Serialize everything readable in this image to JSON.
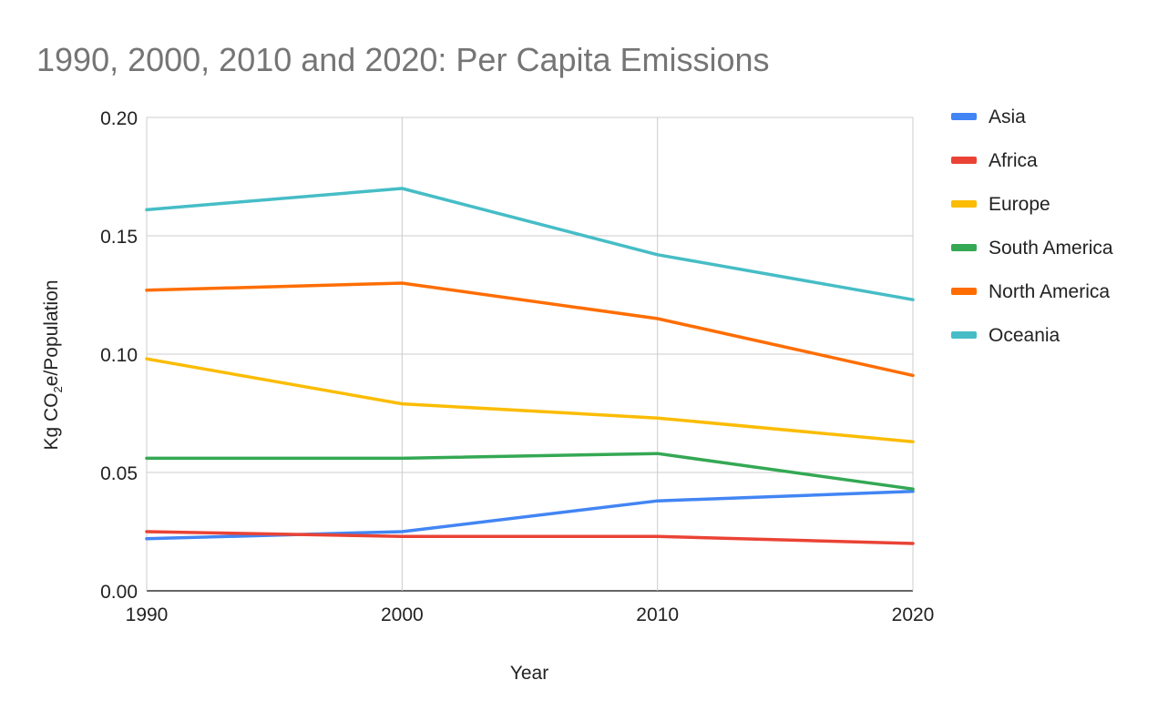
{
  "chart_data": {
    "type": "line",
    "title": "1990, 2000, 2010 and 2020: Per Capita Emissions",
    "xlabel": "Year",
    "ylabel": {
      "prefix": "Kg CO",
      "subscript": "2",
      "suffix": "e/Population"
    },
    "x": [
      "1990",
      "2000",
      "2010",
      "2020"
    ],
    "ylim": [
      0,
      0.2
    ],
    "yticks": [
      "0.00",
      "0.05",
      "0.10",
      "0.15",
      "0.20"
    ],
    "grid": true,
    "legend_position": "right",
    "series": [
      {
        "name": "Asia",
        "color": "#4285f4",
        "values": [
          0.022,
          0.025,
          0.038,
          0.042
        ]
      },
      {
        "name": "Africa",
        "color": "#ea4335",
        "values": [
          0.025,
          0.023,
          0.023,
          0.02
        ]
      },
      {
        "name": "Europe",
        "color": "#fbbc04",
        "values": [
          0.098,
          0.079,
          0.073,
          0.063
        ]
      },
      {
        "name": "South America",
        "color": "#34a853",
        "values": [
          0.056,
          0.056,
          0.058,
          0.043
        ]
      },
      {
        "name": "North America",
        "color": "#ff6d01",
        "values": [
          0.127,
          0.13,
          0.115,
          0.091
        ]
      },
      {
        "name": "Oceania",
        "color": "#46bdc6",
        "values": [
          0.161,
          0.17,
          0.142,
          0.123
        ]
      }
    ]
  }
}
